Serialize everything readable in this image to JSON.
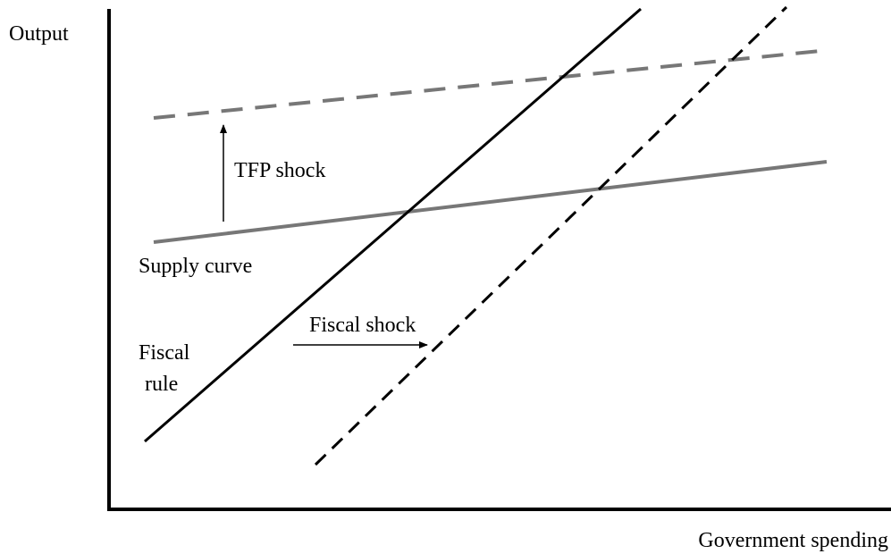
{
  "axes": {
    "y_label": "Output",
    "x_label": "Government spending"
  },
  "labels": {
    "tfp_shock": "TFP shock",
    "supply_curve": "Supply curve",
    "fiscal_shock": "Fiscal shock",
    "fiscal_rule": [
      "Fiscal",
      "rule"
    ]
  }
}
